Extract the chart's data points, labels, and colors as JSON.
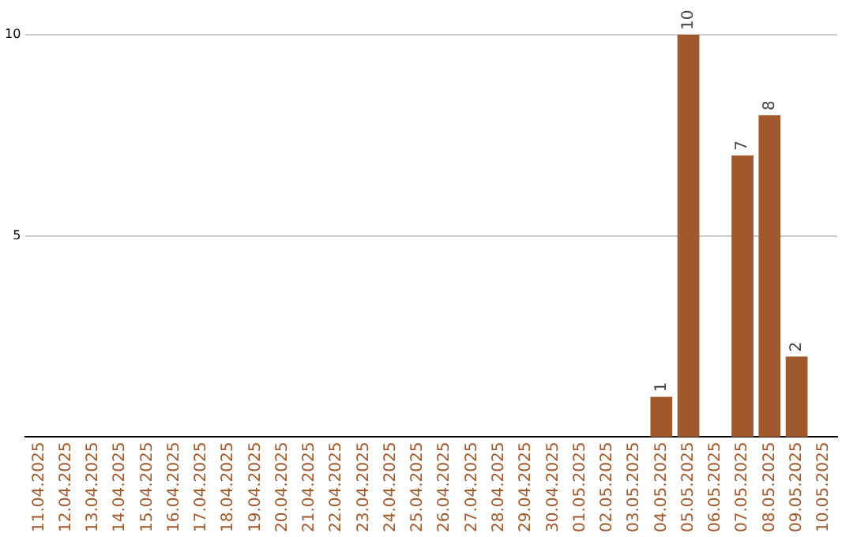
{
  "chart_data": {
    "type": "bar",
    "categories": [
      "11.04.2025",
      "12.04.2025",
      "13.04.2025",
      "14.04.2025",
      "15.04.2025",
      "16.04.2025",
      "17.04.2025",
      "18.04.2025",
      "19.04.2025",
      "20.04.2025",
      "21.04.2025",
      "22.04.2025",
      "23.04.2025",
      "24.04.2025",
      "25.04.2025",
      "26.04.2025",
      "27.04.2025",
      "28.04.2025",
      "29.04.2025",
      "30.04.2025",
      "01.05.2025",
      "02.05.2025",
      "03.05.2025",
      "04.05.2025",
      "05.05.2025",
      "06.05.2025",
      "07.05.2025",
      "08.05.2025",
      "09.05.2025",
      "10.05.2025"
    ],
    "values": [
      null,
      null,
      null,
      null,
      null,
      null,
      null,
      null,
      null,
      null,
      null,
      null,
      null,
      null,
      null,
      null,
      null,
      null,
      null,
      null,
      null,
      null,
      null,
      1,
      10,
      null,
      7,
      8,
      2,
      null
    ],
    "color": "#a0582c",
    "ylim": [
      0,
      10
    ],
    "yticks": [
      5,
      10
    ],
    "grid": "y",
    "data_labels": true,
    "legend": false
  }
}
